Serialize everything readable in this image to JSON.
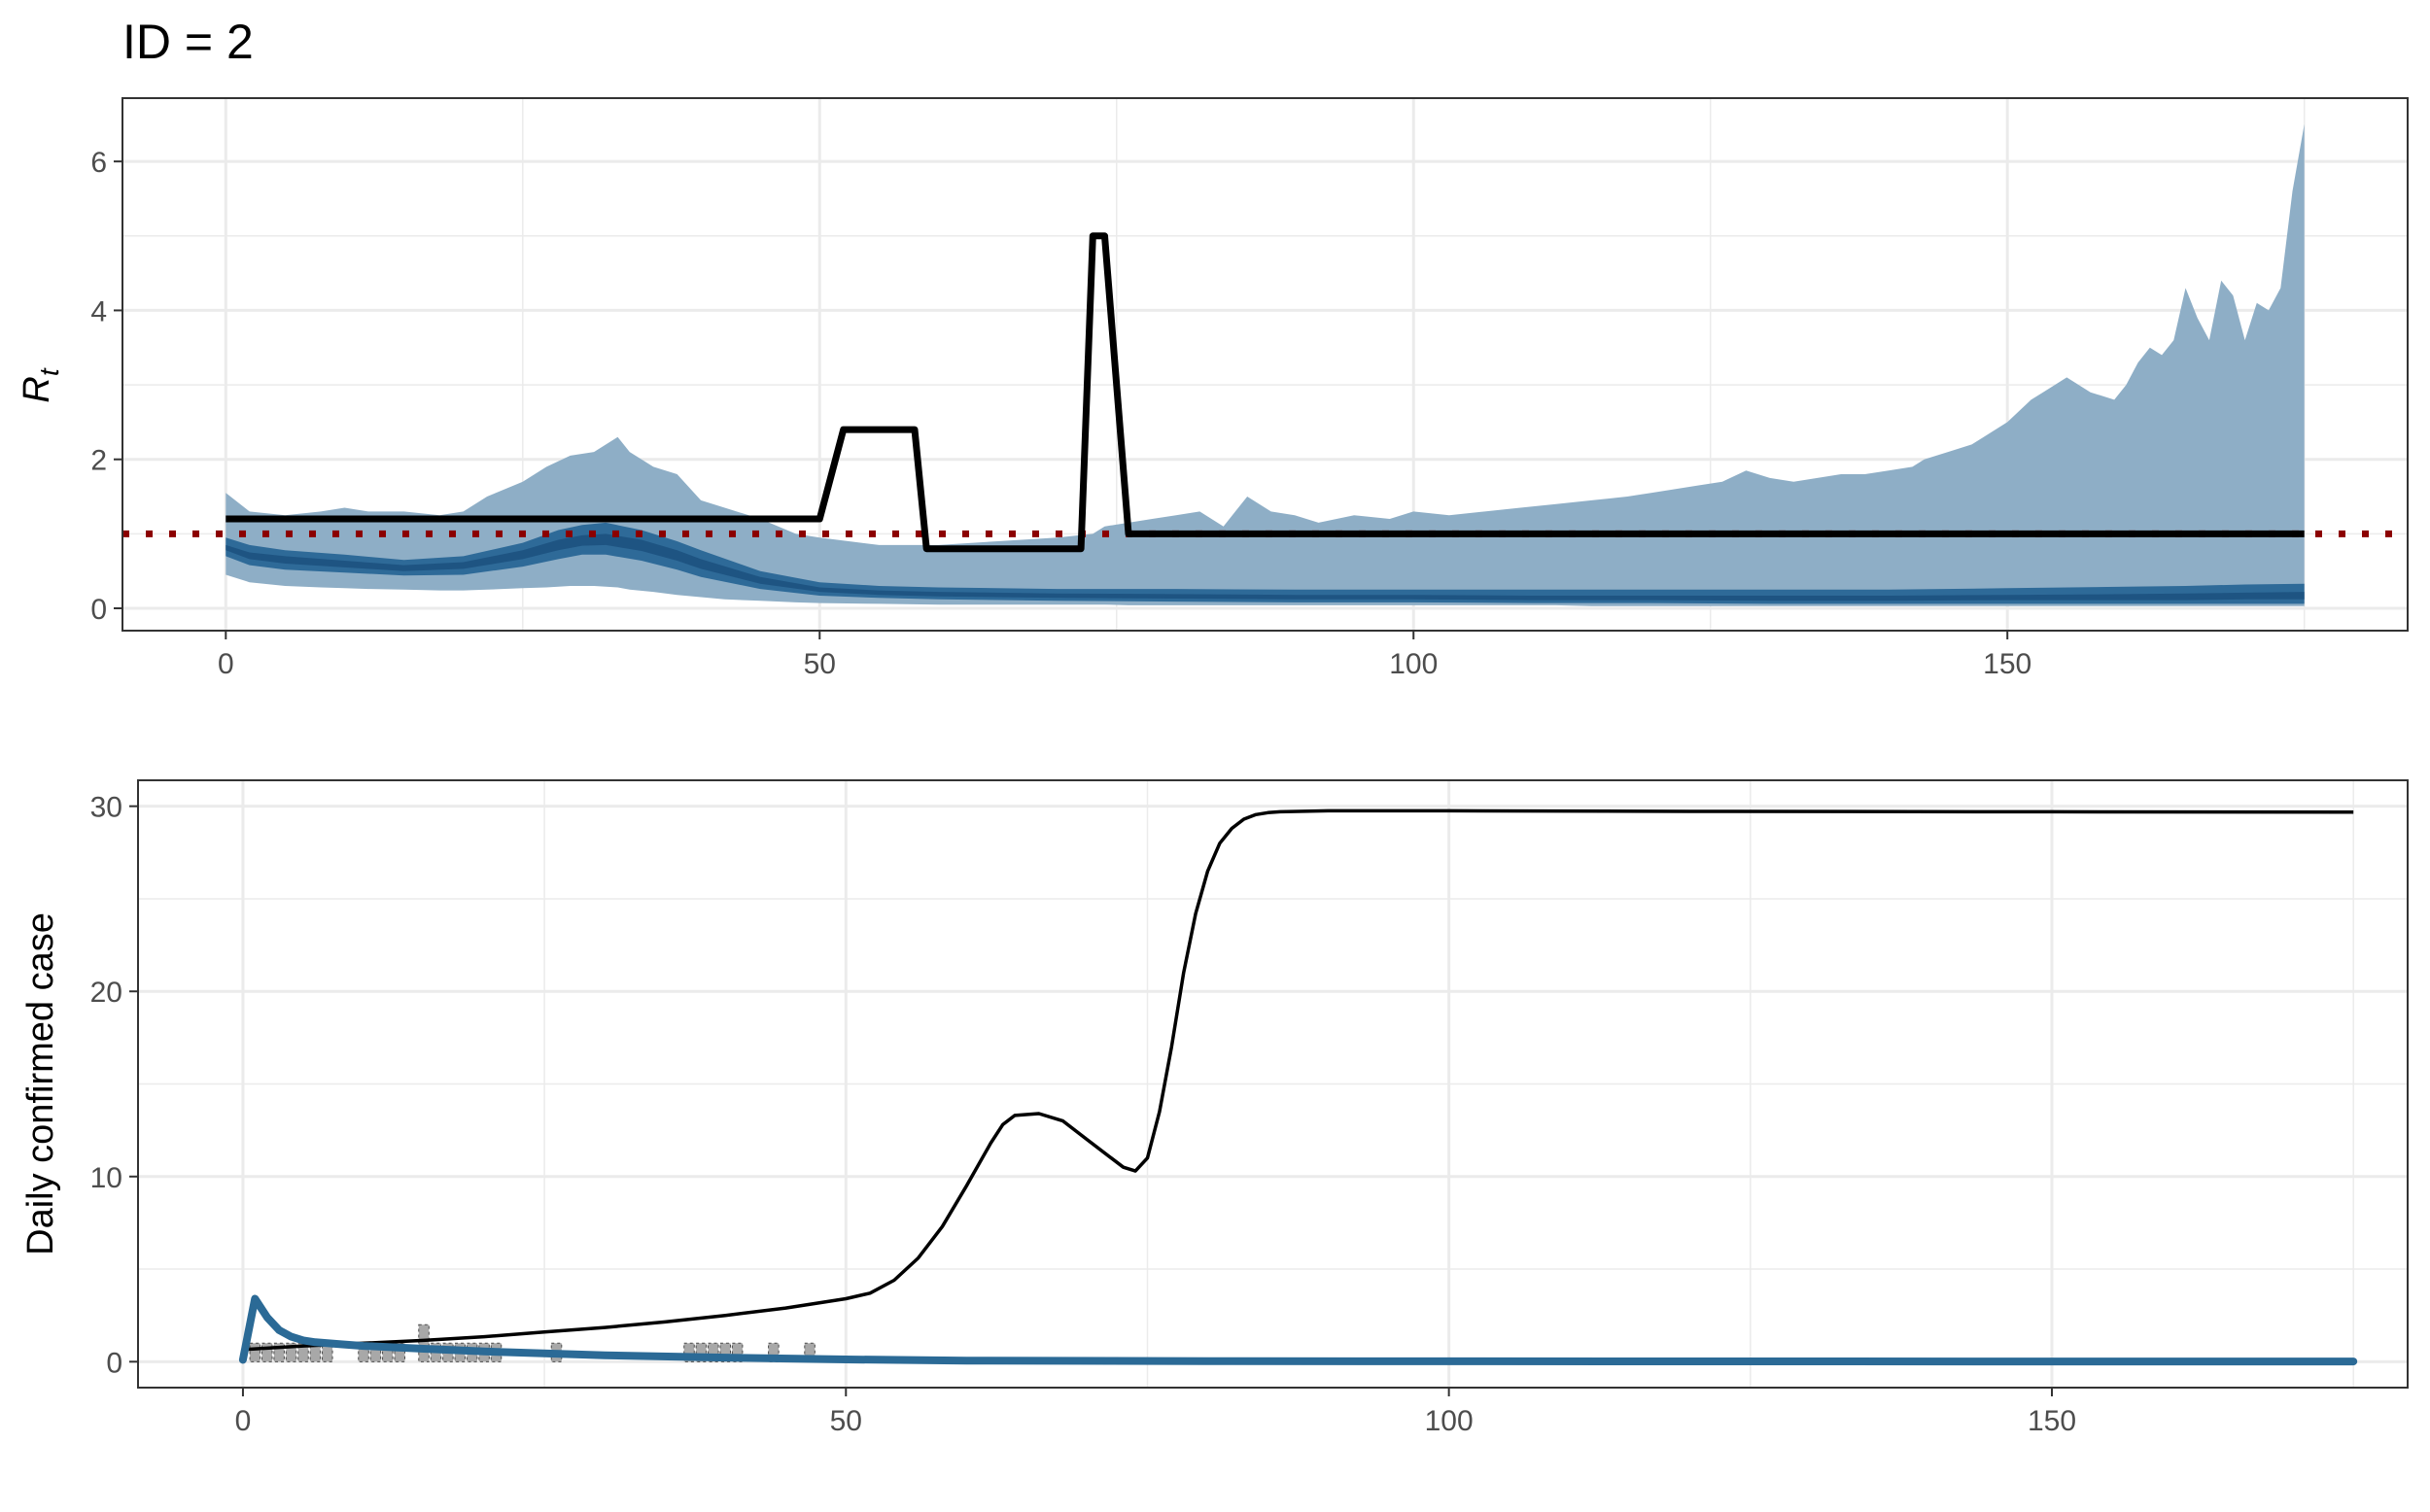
{
  "figure": {
    "title": "ID = 2",
    "colors": {
      "band_outer": "#8eaec6",
      "band_mid": "#2e6a98",
      "band_inner": "#1e5482",
      "true_rt_line": "#000000",
      "reference_line": "#8b0000",
      "estimate_line": "#2b6a96",
      "obs_bar": "#a8a8a8",
      "obs_tick": "#4d4d4d",
      "grid": "#ebebeb"
    }
  },
  "chart_data": [
    {
      "type": "area",
      "title": "",
      "xlabel": "",
      "ylabel_main": "R",
      "ylabel_sub": "t",
      "xlim": [
        -8.7,
        183.7
      ],
      "ylim": [
        -0.3,
        6.85
      ],
      "x_ticks": [
        0,
        50,
        100,
        150
      ],
      "x_tick_labels": [
        "0",
        "50",
        "100",
        "150"
      ],
      "y_ticks": [
        0,
        2,
        4,
        6
      ],
      "y_tick_labels": [
        "0",
        "2",
        "4",
        "6"
      ],
      "grid": true,
      "legend": "none",
      "reference_line": {
        "y": 1
      },
      "outer_band": {
        "x": [
          0,
          2,
          5,
          8,
          10,
          12,
          15,
          18,
          20,
          22,
          25,
          27,
          29,
          31,
          33,
          34,
          36,
          38,
          40,
          42,
          45,
          48,
          50,
          55,
          60,
          65,
          70,
          73,
          74,
          76,
          78,
          80,
          82,
          84,
          86,
          88,
          90,
          92,
          95,
          98,
          100,
          103,
          106,
          109,
          112,
          115,
          118,
          120,
          122,
          124,
          126,
          128,
          130,
          132,
          134,
          136,
          138,
          140,
          142,
          143,
          145,
          147,
          148,
          150,
          152,
          153,
          155,
          157,
          159,
          160,
          161,
          162,
          163,
          164,
          165,
          166,
          167,
          168,
          169,
          170,
          171,
          172,
          173,
          174,
          175
        ],
        "upper": [
          1.55,
          1.3,
          1.25,
          1.3,
          1.35,
          1.3,
          1.3,
          1.25,
          1.3,
          1.5,
          1.7,
          1.9,
          2.05,
          2.1,
          2.3,
          2.1,
          1.9,
          1.8,
          1.45,
          1.35,
          1.2,
          1.0,
          0.95,
          0.85,
          0.85,
          0.9,
          0.95,
          1.0,
          1.1,
          1.15,
          1.2,
          1.25,
          1.3,
          1.1,
          1.5,
          1.3,
          1.25,
          1.15,
          1.25,
          1.2,
          1.3,
          1.25,
          1.3,
          1.35,
          1.4,
          1.45,
          1.5,
          1.55,
          1.6,
          1.65,
          1.7,
          1.85,
          1.75,
          1.7,
          1.75,
          1.8,
          1.8,
          1.85,
          1.9,
          2.0,
          2.1,
          2.2,
          2.3,
          2.5,
          2.8,
          2.9,
          3.1,
          2.9,
          2.8,
          3.0,
          3.3,
          3.5,
          3.4,
          3.6,
          4.3,
          3.9,
          3.6,
          4.4,
          4.2,
          3.6,
          4.1,
          4.0,
          4.3,
          5.6,
          6.5
        ],
        "lower": [
          0.45,
          0.35,
          0.3,
          0.28,
          0.27,
          0.26,
          0.25,
          0.24,
          0.24,
          0.25,
          0.27,
          0.28,
          0.3,
          0.3,
          0.28,
          0.25,
          0.22,
          0.18,
          0.15,
          0.12,
          0.1,
          0.08,
          0.07,
          0.06,
          0.05,
          0.05,
          0.05,
          0.05,
          0.05,
          0.04,
          0.04,
          0.04,
          0.04,
          0.04,
          0.04,
          0.04,
          0.04,
          0.04,
          0.04,
          0.04,
          0.04,
          0.04,
          0.04,
          0.04,
          0.04,
          0.03,
          0.03,
          0.03,
          0.03,
          0.03,
          0.03,
          0.03,
          0.03,
          0.03,
          0.03,
          0.03,
          0.03,
          0.03,
          0.03,
          0.03,
          0.03,
          0.03,
          0.03,
          0.03,
          0.03,
          0.03,
          0.03,
          0.03,
          0.03,
          0.03,
          0.03,
          0.03,
          0.03,
          0.03,
          0.03,
          0.03,
          0.03,
          0.03,
          0.03,
          0.03,
          0.03,
          0.03,
          0.03,
          0.03,
          0.03
        ]
      },
      "mid_band": {
        "x": [
          0,
          2,
          5,
          10,
          15,
          20,
          25,
          28,
          30,
          32,
          35,
          38,
          40,
          45,
          50,
          55,
          60,
          70,
          80,
          90,
          100,
          110,
          120,
          130,
          140,
          150,
          160,
          165,
          170,
          175
        ],
        "upper": [
          0.95,
          0.85,
          0.78,
          0.72,
          0.65,
          0.7,
          0.88,
          1.05,
          1.12,
          1.15,
          1.05,
          0.9,
          0.78,
          0.5,
          0.35,
          0.3,
          0.28,
          0.26,
          0.26,
          0.25,
          0.25,
          0.25,
          0.25,
          0.25,
          0.25,
          0.27,
          0.29,
          0.3,
          0.32,
          0.33
        ],
        "lower": [
          0.7,
          0.58,
          0.52,
          0.48,
          0.44,
          0.45,
          0.56,
          0.66,
          0.72,
          0.72,
          0.64,
          0.52,
          0.42,
          0.26,
          0.17,
          0.14,
          0.12,
          0.1,
          0.09,
          0.08,
          0.08,
          0.07,
          0.07,
          0.06,
          0.06,
          0.06,
          0.06,
          0.06,
          0.06,
          0.06
        ]
      },
      "inner_band": {
        "x": [
          0,
          2,
          5,
          10,
          15,
          20,
          25,
          28,
          30,
          32,
          35,
          38,
          40,
          45,
          50,
          55,
          60,
          70,
          80,
          90,
          100,
          110,
          120,
          130,
          140,
          150,
          160,
          165,
          170,
          175
        ],
        "upper": [
          0.85,
          0.75,
          0.7,
          0.64,
          0.58,
          0.62,
          0.78,
          0.92,
          0.98,
          1.0,
          0.92,
          0.78,
          0.66,
          0.42,
          0.28,
          0.24,
          0.22,
          0.2,
          0.19,
          0.18,
          0.18,
          0.17,
          0.17,
          0.17,
          0.17,
          0.18,
          0.19,
          0.2,
          0.21,
          0.22
        ],
        "lower": [
          0.78,
          0.66,
          0.6,
          0.55,
          0.5,
          0.53,
          0.66,
          0.78,
          0.84,
          0.85,
          0.77,
          0.64,
          0.53,
          0.33,
          0.22,
          0.18,
          0.16,
          0.14,
          0.13,
          0.12,
          0.12,
          0.11,
          0.11,
          0.1,
          0.1,
          0.11,
          0.11,
          0.11,
          0.12,
          0.12
        ]
      },
      "true_rt": {
        "x": [
          0,
          50,
          52,
          58,
          59,
          72,
          73,
          74,
          76,
          175
        ],
        "y": [
          1.2,
          1.2,
          2.4,
          2.4,
          0.8,
          0.8,
          5.0,
          5.0,
          1.0,
          1.0
        ]
      }
    },
    {
      "type": "line",
      "title": "",
      "xlabel": "",
      "ylabel": "Daily confirmed case",
      "xlim": [
        -8.7,
        179.5
      ],
      "ylim": [
        -1.4,
        31.4
      ],
      "x_ticks": [
        0,
        50,
        100,
        150
      ],
      "x_tick_labels": [
        "0",
        "50",
        "100",
        "150"
      ],
      "y_ticks": [
        0,
        10,
        20,
        30
      ],
      "y_tick_labels": [
        "0",
        "10",
        "20",
        "30"
      ],
      "grid": true,
      "legend": "none",
      "expected_cases": {
        "x": [
          0,
          5,
          10,
          15,
          20,
          25,
          30,
          35,
          40,
          45,
          50,
          52,
          54,
          56,
          58,
          60,
          62,
          63,
          64,
          66,
          68,
          70,
          72,
          73,
          74,
          75,
          76,
          77,
          78,
          79,
          80,
          81,
          82,
          83,
          84,
          85,
          86,
          90,
          100,
          120,
          150,
          175
        ],
        "y": [
          0.65,
          0.85,
          1.0,
          1.15,
          1.35,
          1.6,
          1.85,
          2.15,
          2.5,
          2.9,
          3.4,
          3.7,
          4.4,
          5.6,
          7.3,
          9.5,
          11.8,
          12.8,
          13.3,
          13.4,
          13.0,
          12.0,
          11.0,
          10.5,
          10.3,
          11.0,
          13.5,
          17.0,
          21.0,
          24.2,
          26.5,
          28.0,
          28.8,
          29.3,
          29.55,
          29.65,
          29.7,
          29.75,
          29.75,
          29.72,
          29.7,
          29.68
        ]
      },
      "estimated_cases": {
        "x": [
          0,
          1,
          2,
          3,
          4,
          5,
          6,
          8,
          10,
          15,
          20,
          30,
          40,
          50,
          60,
          80,
          100,
          150,
          175
        ],
        "y": [
          0.1,
          3.4,
          2.4,
          1.7,
          1.35,
          1.15,
          1.05,
          0.95,
          0.85,
          0.7,
          0.55,
          0.35,
          0.22,
          0.12,
          0.06,
          0.03,
          0.02,
          0.01,
          0.01
        ]
      },
      "observed_cases": {
        "x": [
          1,
          2,
          3,
          4,
          5,
          6,
          7,
          10,
          11,
          12,
          13,
          15,
          16,
          17,
          18,
          19,
          20,
          21,
          26,
          37,
          38,
          39,
          40,
          41,
          44,
          47
        ],
        "y": [
          1,
          1,
          1,
          1,
          1,
          1,
          1,
          1,
          1,
          1,
          1,
          2,
          1,
          1,
          1,
          1,
          1,
          1,
          1,
          1,
          1,
          1,
          1,
          1,
          1,
          1
        ]
      }
    }
  ]
}
